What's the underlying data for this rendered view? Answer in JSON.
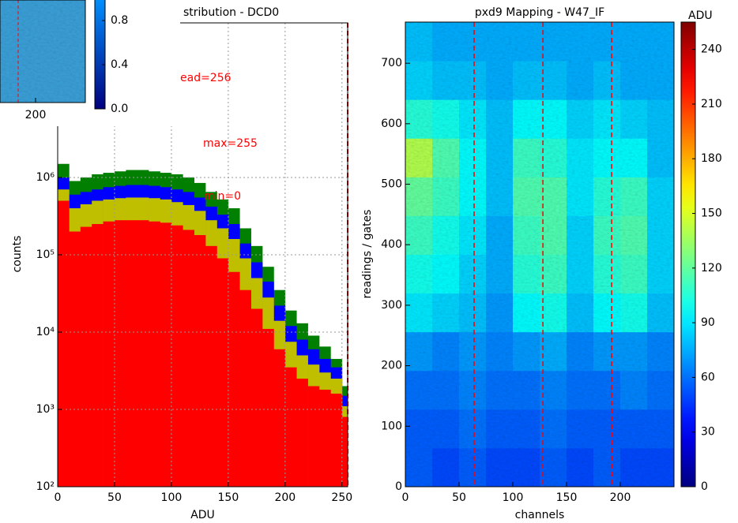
{
  "chart_data": [
    {
      "type": "histogram",
      "title": "stribution - DCD0",
      "xlabel": "ADU",
      "ylabel": "counts",
      "bins": [
        0,
        10,
        20,
        30,
        40,
        50,
        60,
        70,
        80,
        90,
        100,
        110,
        120,
        130,
        140,
        150,
        160,
        170,
        180,
        190,
        200,
        210,
        220,
        230,
        240,
        250,
        255
      ],
      "series": [
        {
          "color": "#007f00",
          "values": [
            1500000,
            900000,
            1000000,
            1100000,
            1150000,
            1200000,
            1250000,
            1250000,
            1200000,
            1150000,
            1100000,
            1000000,
            850000,
            650000,
            520000,
            400000,
            220000,
            130000,
            70000,
            35000,
            19000,
            13000,
            9000,
            6500,
            4500,
            2000
          ]
        },
        {
          "color": "#0000ff",
          "values": [
            1000000,
            600000,
            650000,
            700000,
            750000,
            780000,
            800000,
            800000,
            780000,
            750000,
            700000,
            650000,
            550000,
            420000,
            330000,
            250000,
            140000,
            80000,
            45000,
            22000,
            12000,
            8000,
            6000,
            4500,
            3500,
            1500
          ]
        },
        {
          "color": "#bfbf00",
          "values": [
            700000,
            400000,
            450000,
            500000,
            520000,
            540000,
            550000,
            550000,
            540000,
            520000,
            480000,
            440000,
            370000,
            280000,
            220000,
            160000,
            90000,
            50000,
            28000,
            14000,
            7500,
            5000,
            3800,
            3000,
            2500,
            1100
          ]
        },
        {
          "color": "#ff0000",
          "values": [
            500000,
            200000,
            230000,
            250000,
            270000,
            280000,
            280000,
            280000,
            270000,
            260000,
            240000,
            210000,
            180000,
            130000,
            90000,
            60000,
            35000,
            20000,
            11000,
            6000,
            3500,
            2500,
            2000,
            1800,
            1600,
            800
          ]
        }
      ],
      "xlim": [
        0,
        255
      ],
      "ylim": [
        100,
        100000000
      ],
      "log_y": true,
      "grid": true,
      "xticks": [
        0,
        50,
        100,
        150,
        200,
        250
      ],
      "yticks": [
        {
          "value": 100,
          "label": "10²"
        },
        {
          "value": 1000,
          "label": "10³"
        },
        {
          "value": 10000,
          "label": "10⁴"
        },
        {
          "value": 100000,
          "label": "10⁵"
        },
        {
          "value": 1000000,
          "label": "10⁶"
        }
      ],
      "annotations": [
        "ead=256",
        "max=255",
        "min=0"
      ],
      "annotation_color": "#ff0000",
      "vline": 255,
      "vline_color": "#ff0000"
    },
    {
      "type": "heatmap",
      "title": "pxd9 Mapping - W47_IF",
      "xlabel": "channels",
      "ylabel": "readings / gates",
      "colorbar_label": "ADU",
      "xbins": [
        0,
        25,
        50,
        75,
        100,
        125,
        150,
        175,
        200,
        225,
        250
      ],
      "ybins": [
        0,
        64,
        128,
        192,
        256,
        320,
        384,
        448,
        512,
        576,
        640,
        704,
        768
      ],
      "values": [
        [
          55,
          50,
          55,
          50,
          50,
          55,
          50,
          55,
          50,
          50
        ],
        [
          55,
          55,
          60,
          55,
          55,
          60,
          55,
          55,
          55,
          55
        ],
        [
          60,
          60,
          65,
          60,
          60,
          65,
          60,
          60,
          65,
          60
        ],
        [
          70,
          65,
          70,
          65,
          70,
          75,
          65,
          70,
          70,
          65
        ],
        [
          90,
          85,
          80,
          70,
          95,
          100,
          80,
          95,
          100,
          80
        ],
        [
          100,
          95,
          85,
          75,
          105,
          110,
          85,
          105,
          110,
          85
        ],
        [
          110,
          100,
          90,
          75,
          110,
          115,
          85,
          110,
          115,
          85
        ],
        [
          120,
          110,
          95,
          80,
          115,
          115,
          90,
          105,
          110,
          85
        ],
        [
          140,
          115,
          95,
          80,
          110,
          105,
          90,
          95,
          95,
          80
        ],
        [
          105,
          100,
          90,
          80,
          95,
          95,
          85,
          90,
          85,
          80
        ],
        [
          85,
          80,
          80,
          75,
          80,
          80,
          75,
          80,
          75,
          75
        ],
        [
          80,
          75,
          75,
          75,
          75,
          75,
          75,
          75,
          75,
          75
        ]
      ],
      "xlim": [
        0,
        250
      ],
      "ylim": [
        0,
        768
      ],
      "xticks": [
        0,
        50,
        100,
        150,
        200
      ],
      "yticks": [
        0,
        100,
        200,
        300,
        400,
        500,
        600,
        700
      ],
      "clim": [
        0,
        255
      ],
      "cticks": [
        0,
        30,
        60,
        90,
        120,
        150,
        180,
        210,
        240
      ],
      "colormap": "jet",
      "vlines": [
        64,
        128,
        192
      ],
      "vline_color": "#ff0000"
    },
    {
      "type": "colorbar",
      "clim": [
        0,
        1
      ],
      "colors": [
        "#00007f",
        "#0090ff"
      ],
      "yticks": [
        {
          "value": 0,
          "label": "0.0"
        },
        0.4,
        0.8
      ],
      "xlim": [
        0,
        250
      ],
      "xticks": [
        200
      ]
    }
  ]
}
